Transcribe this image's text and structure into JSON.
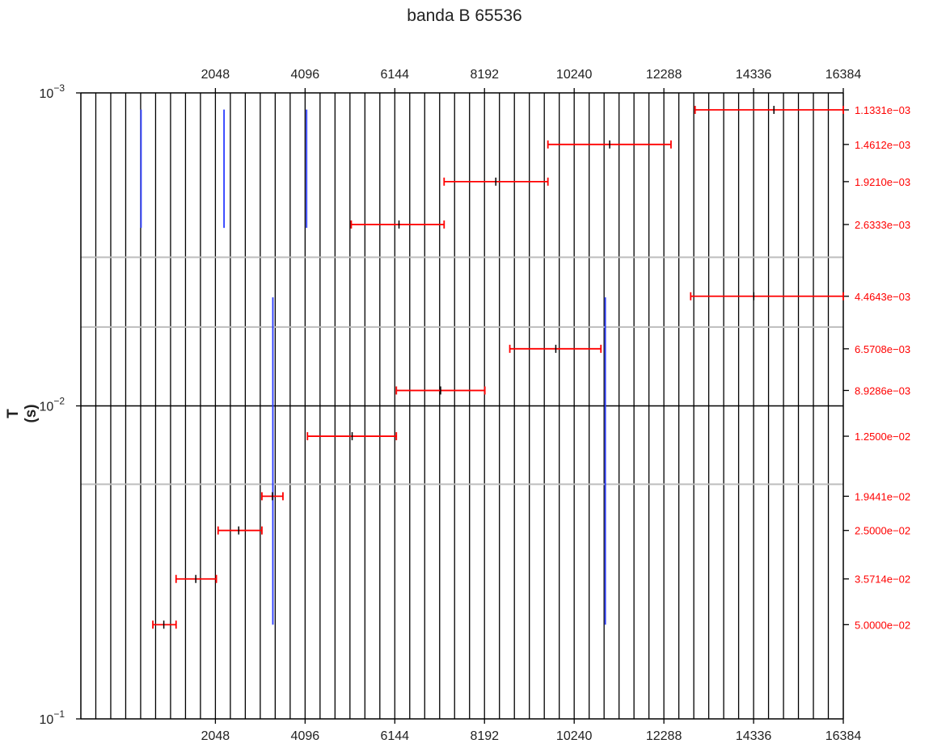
{
  "chart_data": {
    "type": "scatter",
    "title": "banda B 65536",
    "ylabel": "T (s)",
    "xlabel": "",
    "xlim": [
      -1024,
      16384
    ],
    "x_ticks": [
      2048,
      4096,
      6144,
      8192,
      10240,
      12288,
      14336,
      16384
    ],
    "y_scale": "log",
    "y_inverted": true,
    "ylim": [
      0.001,
      0.1
    ],
    "y_ticks": [
      {
        "base": "10",
        "exp": "−3",
        "value": 0.001
      },
      {
        "base": "10",
        "exp": "−2",
        "value": 0.01
      },
      {
        "base": "10",
        "exp": "−1",
        "value": 0.1
      }
    ],
    "vertical_grid_step": 341.33,
    "horizontal_gray_lines": [
      0.00335,
      0.0056,
      0.0178
    ],
    "right_labels": [
      {
        "text": "1.1331e−03",
        "value": 0.0011331
      },
      {
        "text": "1.4612e−03",
        "value": 0.0014612
      },
      {
        "text": "1.9210e−03",
        "value": 0.001921
      },
      {
        "text": "2.6333e−03",
        "value": 0.0026333
      },
      {
        "text": "4.4643e−03",
        "value": 0.0044643
      },
      {
        "text": "6.5708e−03",
        "value": 0.0065708
      },
      {
        "text": "8.9286e−03",
        "value": 0.0089286
      },
      {
        "text": "1.2500e−02",
        "value": 0.0125
      },
      {
        "text": "1.9441e−02",
        "value": 0.019441
      },
      {
        "text": "2.5000e−02",
        "value": 0.025
      },
      {
        "text": "3.5714e−02",
        "value": 0.035714
      },
      {
        "text": "5.0000e−02",
        "value": 0.05
      }
    ],
    "intervals": [
      {
        "x0": 13000,
        "x1": 16500,
        "center": 14800,
        "y": 0.0011331
      },
      {
        "x0": 9640,
        "x1": 12450,
        "center": 11050,
        "y": 0.0014612
      },
      {
        "x0": 7270,
        "x1": 9640,
        "center": 8450,
        "y": 0.001921
      },
      {
        "x0": 5150,
        "x1": 7270,
        "center": 6240,
        "y": 0.0026333
      },
      {
        "x0": 12900,
        "x1": 16500,
        "center": 14340,
        "y": 0.0044643
      },
      {
        "x0": 8770,
        "x1": 10850,
        "center": 9820,
        "y": 0.0065708
      },
      {
        "x0": 6180,
        "x1": 8200,
        "center": 7190,
        "y": 0.0089286
      },
      {
        "x0": 4150,
        "x1": 6180,
        "center": 5170,
        "y": 0.0125
      },
      {
        "x0": 3110,
        "x1": 3590,
        "center": 3350,
        "y": 0.019441
      },
      {
        "x0": 2110,
        "x1": 3110,
        "center": 2580,
        "y": 0.025
      },
      {
        "x0": 1150,
        "x1": 2070,
        "center": 1600,
        "y": 0.035714
      },
      {
        "x0": 620,
        "x1": 1150,
        "center": 870,
        "y": 0.05
      }
    ],
    "blue_lines": [
      {
        "x": 350,
        "y0": 0.00113,
        "y1": 0.0027
      },
      {
        "x": 2245,
        "y0": 0.00113,
        "y1": 0.0027
      },
      {
        "x": 4130,
        "y0": 0.00113,
        "y1": 0.0027
      },
      {
        "x": 3360,
        "y0": 0.0045,
        "y1": 0.05
      },
      {
        "x": 10950,
        "y0": 0.0045,
        "y1": 0.05
      }
    ]
  }
}
